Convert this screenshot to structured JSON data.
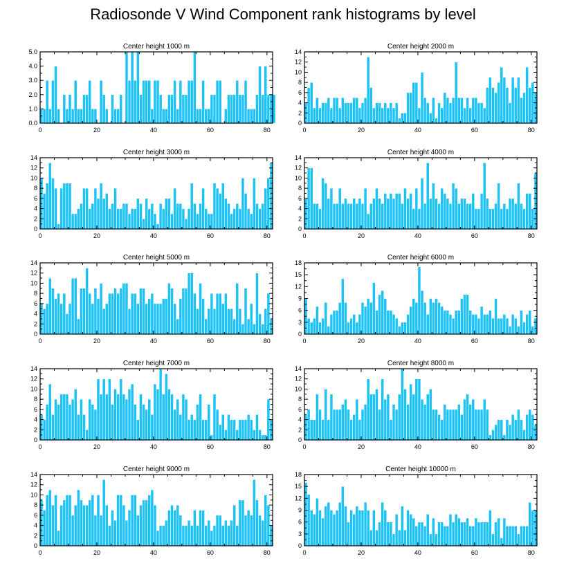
{
  "title": "Radiosonde V Wind Component rank histograms by level",
  "bar_color": "#1ec3f5",
  "chart_data": [
    {
      "type": "bar",
      "title": "Center height 1000 m",
      "xlim": [
        0,
        82
      ],
      "ylim": [
        0,
        5
      ],
      "yticks": [
        0,
        1,
        2,
        3,
        4,
        5
      ],
      "ytick_labels": [
        "0.0",
        "1.0",
        "2.0",
        "3.0",
        "4.0",
        "5.0"
      ],
      "xticks": [
        0,
        20,
        40,
        60,
        80
      ],
      "values": [
        1,
        1,
        3,
        1,
        3,
        4,
        1,
        0,
        2,
        1,
        2,
        1,
        3,
        1,
        1,
        2,
        2,
        3,
        1,
        1,
        0,
        3,
        2,
        1,
        0,
        2,
        1,
        1,
        2,
        0,
        5,
        3,
        5,
        3,
        5,
        2,
        3,
        3,
        3,
        1,
        3,
        3,
        2,
        1,
        1,
        2,
        2,
        3,
        1,
        3,
        2,
        2,
        3,
        3,
        5,
        1,
        1,
        3,
        1,
        1,
        2,
        2,
        3,
        3,
        0,
        1,
        2,
        2,
        2,
        3,
        2,
        2,
        3,
        1,
        1,
        1,
        2,
        4,
        2,
        4,
        2,
        2,
        2
      ]
    },
    {
      "type": "bar",
      "title": "Center height 2000 m",
      "xlim": [
        0,
        82
      ],
      "ylim": [
        0,
        14
      ],
      "yticks": [
        0,
        2,
        4,
        6,
        8,
        10,
        12,
        14
      ],
      "ytick_labels": [
        "0",
        "2",
        "4",
        "6",
        "8",
        "10",
        "12",
        "14"
      ],
      "xticks": [
        0,
        20,
        40,
        60,
        80
      ],
      "values": [
        4,
        7,
        8,
        3,
        5,
        3,
        4,
        4,
        5,
        3,
        5,
        5,
        3,
        5,
        4,
        4,
        4,
        5,
        5,
        3,
        4,
        5,
        13,
        7,
        3,
        4,
        4,
        3,
        4,
        3,
        4,
        3,
        4,
        1,
        2,
        2,
        6,
        6,
        8,
        8,
        3,
        10,
        5,
        4,
        2,
        5,
        1,
        4,
        3,
        6,
        5,
        4,
        5,
        12,
        5,
        5,
        3,
        5,
        3,
        5,
        5,
        4,
        4,
        3,
        7,
        9,
        7,
        6,
        8,
        11,
        9,
        7,
        4,
        9,
        7,
        9,
        5,
        6,
        11,
        7,
        8,
        6
      ]
    },
    {
      "type": "bar",
      "title": "Center height 3000 m",
      "xlim": [
        0,
        82
      ],
      "ylim": [
        0,
        14
      ],
      "yticks": [
        0,
        2,
        4,
        6,
        8,
        10,
        12,
        14
      ],
      "ytick_labels": [
        "0",
        "2",
        "4",
        "6",
        "8",
        "10",
        "12",
        "14"
      ],
      "xticks": [
        0,
        20,
        40,
        60,
        80
      ],
      "values": [
        10,
        7,
        9,
        13,
        10,
        8,
        1,
        8,
        9,
        9,
        9,
        3,
        3,
        4,
        5,
        8,
        8,
        4,
        5,
        8,
        6,
        9,
        6,
        7,
        4,
        5,
        8,
        4,
        4,
        5,
        5,
        3,
        4,
        4,
        6,
        5,
        2,
        6,
        4,
        5,
        3,
        1,
        5,
        4,
        6,
        6,
        3,
        8,
        5,
        5,
        4,
        2,
        4,
        9,
        5,
        3,
        5,
        8,
        4,
        3,
        3,
        9,
        8,
        7,
        9,
        6,
        5,
        3,
        4,
        5,
        4,
        10,
        7,
        4,
        3,
        10,
        5,
        4,
        5,
        8,
        10,
        13
      ]
    },
    {
      "type": "bar",
      "title": "Center height 4000 m",
      "xlim": [
        0,
        82
      ],
      "ylim": [
        0,
        14
      ],
      "yticks": [
        0,
        2,
        4,
        6,
        8,
        10,
        12,
        14
      ],
      "ytick_labels": [
        "0",
        "2",
        "4",
        "6",
        "8",
        "10",
        "12",
        "14"
      ],
      "xticks": [
        0,
        20,
        40,
        60,
        80
      ],
      "values": [
        6,
        12,
        12,
        5,
        5,
        4,
        10,
        9,
        6,
        8,
        5,
        5,
        8,
        5,
        6,
        5,
        5,
        6,
        5,
        6,
        5,
        8,
        3,
        5,
        6,
        8,
        6,
        5,
        7,
        6,
        7,
        6,
        7,
        7,
        5,
        8,
        6,
        7,
        4,
        8,
        4,
        10,
        5,
        13,
        6,
        9,
        6,
        5,
        8,
        7,
        6,
        5,
        9,
        8,
        5,
        6,
        6,
        5,
        5,
        7,
        4,
        4,
        7,
        13,
        6,
        4,
        4,
        5,
        9,
        4,
        5,
        4,
        6,
        6,
        5,
        9,
        5,
        4,
        7,
        7,
        4,
        11
      ]
    },
    {
      "type": "bar",
      "title": "Center height 5000 m",
      "xlim": [
        0,
        82
      ],
      "ylim": [
        0,
        14
      ],
      "yticks": [
        0,
        2,
        4,
        6,
        8,
        10,
        12,
        14
      ],
      "ytick_labels": [
        "0",
        "2",
        "4",
        "6",
        "8",
        "10",
        "12",
        "14"
      ],
      "xticks": [
        0,
        20,
        40,
        60,
        80
      ],
      "values": [
        6,
        5,
        6,
        11,
        9,
        7,
        8,
        6,
        8,
        4,
        6,
        11,
        11,
        3,
        9,
        9,
        13,
        8,
        6,
        9,
        7,
        10,
        5,
        6,
        8,
        8,
        9,
        8,
        9,
        10,
        10,
        5,
        8,
        8,
        6,
        9,
        9,
        6,
        7,
        8,
        6,
        6,
        6,
        7,
        7,
        10,
        9,
        6,
        3,
        7,
        9,
        9,
        12,
        12,
        8,
        5,
        10,
        7,
        3,
        5,
        8,
        5,
        8,
        8,
        6,
        8,
        5,
        5,
        3,
        10,
        5,
        2,
        9,
        3,
        6,
        2,
        12,
        4,
        2,
        5,
        8,
        3
      ]
    },
    {
      "type": "bar",
      "title": "Center height 6000 m",
      "xlim": [
        0,
        82
      ],
      "ylim": [
        0,
        18
      ],
      "yticks": [
        0,
        3,
        6,
        9,
        12,
        15,
        18
      ],
      "ytick_labels": [
        "0",
        "3",
        "6",
        "9",
        "12",
        "15",
        "18"
      ],
      "xticks": [
        0,
        20,
        40,
        60,
        80
      ],
      "values": [
        9,
        4,
        3,
        4,
        7,
        3,
        4,
        8,
        2,
        5,
        6,
        6,
        8,
        14,
        8,
        3,
        4,
        5,
        3,
        5,
        8,
        7,
        9,
        8,
        13,
        6,
        10,
        11,
        9,
        6,
        6,
        5,
        4,
        2,
        3,
        3,
        5,
        7,
        9,
        8,
        17,
        11,
        8,
        5,
        9,
        8,
        9,
        8,
        7,
        6,
        6,
        5,
        4,
        6,
        6,
        9,
        10,
        10,
        6,
        5,
        5,
        4,
        7,
        5,
        5,
        6,
        4,
        9,
        4,
        4,
        5,
        4,
        2,
        5,
        4,
        2,
        6,
        3,
        5,
        6,
        2,
        4
      ]
    },
    {
      "type": "bar",
      "title": "Center height 7000 m",
      "xlim": [
        0,
        82
      ],
      "ylim": [
        0,
        14
      ],
      "yticks": [
        0,
        2,
        4,
        6,
        8,
        10,
        12,
        14
      ],
      "ytick_labels": [
        "0",
        "2",
        "4",
        "6",
        "8",
        "10",
        "12",
        "14"
      ],
      "xticks": [
        0,
        20,
        40,
        60,
        80
      ],
      "values": [
        5,
        4,
        7,
        11,
        5,
        8,
        7,
        9,
        9,
        9,
        7,
        8,
        10,
        5,
        8,
        5,
        2,
        8,
        7,
        6,
        12,
        9,
        12,
        9,
        12,
        7,
        10,
        9,
        12,
        9,
        8,
        10,
        11,
        7,
        4,
        9,
        7,
        6,
        8,
        5,
        11,
        10,
        14,
        9,
        13,
        10,
        9,
        6,
        8,
        5,
        9,
        8,
        4,
        5,
        4,
        7,
        9,
        4,
        4,
        7,
        1,
        9,
        6,
        3,
        5,
        2,
        5,
        4,
        4,
        2,
        4,
        4,
        4,
        5,
        4,
        2,
        5,
        2,
        1,
        1,
        8,
        4
      ]
    },
    {
      "type": "bar",
      "title": "Center height 8000 m",
      "xlim": [
        0,
        82
      ],
      "ylim": [
        0,
        14
      ],
      "yticks": [
        0,
        2,
        4,
        6,
        8,
        10,
        12,
        14
      ],
      "ytick_labels": [
        "0",
        "2",
        "4",
        "6",
        "8",
        "10",
        "12",
        "14"
      ],
      "xticks": [
        0,
        20,
        40,
        60,
        80
      ],
      "values": [
        5,
        6,
        4,
        4,
        9,
        6,
        4,
        10,
        4,
        9,
        6,
        6,
        6,
        7,
        8,
        6,
        4,
        5,
        8,
        4,
        6,
        7,
        12,
        9,
        9,
        10,
        6,
        12,
        8,
        9,
        4,
        7,
        6,
        9,
        14,
        10,
        7,
        11,
        9,
        12,
        12,
        8,
        7,
        9,
        10,
        6,
        6,
        5,
        4,
        7,
        6,
        6,
        6,
        6,
        7,
        5,
        8,
        9,
        7,
        8,
        6,
        6,
        6,
        8,
        6,
        1,
        2,
        3,
        4,
        4,
        1,
        4,
        3,
        5,
        4,
        6,
        4,
        2,
        5,
        6,
        5,
        3
      ]
    },
    {
      "type": "bar",
      "title": "Center height 9000 m",
      "xlim": [
        0,
        82
      ],
      "ylim": [
        0,
        14
      ],
      "yticks": [
        0,
        2,
        4,
        6,
        8,
        10,
        12,
        14
      ],
      "ytick_labels": [
        "0",
        "2",
        "4",
        "6",
        "8",
        "10",
        "12",
        "14"
      ],
      "xticks": [
        0,
        20,
        40,
        60,
        80
      ],
      "values": [
        9,
        7,
        10,
        11,
        8,
        10,
        3,
        8,
        9,
        10,
        10,
        6,
        8,
        11,
        9,
        8,
        8,
        9,
        10,
        6,
        10,
        6,
        13,
        8,
        4,
        7,
        5,
        10,
        10,
        8,
        5,
        7,
        10,
        10,
        6,
        8,
        9,
        9,
        10,
        11,
        8,
        3,
        4,
        4,
        5,
        7,
        8,
        7,
        8,
        6,
        4,
        4,
        5,
        4,
        7,
        4,
        7,
        7,
        4,
        5,
        3,
        4,
        6,
        6,
        4,
        5,
        4,
        5,
        8,
        4,
        9,
        9,
        6,
        7,
        6,
        13,
        9,
        6,
        5,
        10,
        8,
        4
      ]
    },
    {
      "type": "bar",
      "title": "Center height 10000 m",
      "xlim": [
        0,
        82
      ],
      "ylim": [
        0,
        18
      ],
      "yticks": [
        0,
        3,
        6,
        9,
        12,
        15,
        18
      ],
      "ytick_labels": [
        "0",
        "3",
        "6",
        "9",
        "12",
        "15",
        "18"
      ],
      "xticks": [
        0,
        20,
        40,
        60,
        80
      ],
      "values": [
        16,
        13,
        9,
        8,
        12,
        9,
        7,
        10,
        11,
        9,
        8,
        9,
        11,
        15,
        10,
        6,
        9,
        8,
        10,
        9,
        9,
        11,
        9,
        4,
        9,
        4,
        6,
        11,
        9,
        6,
        6,
        3,
        8,
        4,
        10,
        4,
        9,
        8,
        7,
        5,
        6,
        6,
        5,
        8,
        3,
        7,
        3,
        6,
        6,
        5,
        5,
        8,
        6,
        8,
        7,
        6,
        6,
        7,
        5,
        5,
        7,
        6,
        6,
        6,
        6,
        9,
        3,
        6,
        7,
        2,
        7,
        5,
        5,
        5,
        5,
        3,
        5,
        5,
        5,
        11,
        9,
        9
      ]
    }
  ]
}
